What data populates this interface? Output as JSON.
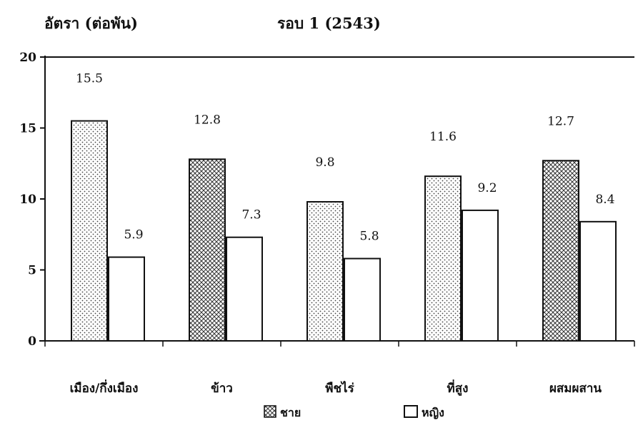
{
  "chart_data": {
    "type": "bar",
    "title": "รอบ 1 (2543)",
    "ylabel": "อัตรา (ต่อพัน)",
    "xlabel": "",
    "ylim": [
      0,
      20
    ],
    "yticks": [
      0,
      5,
      10,
      15,
      20
    ],
    "categories": [
      "เมือง/กึ่งเมือง",
      "ข้าว",
      "พืชไร่",
      "ที่สูง",
      "ผสมผสาน"
    ],
    "series": [
      {
        "name": "ชาย",
        "values": [
          15.5,
          12.8,
          9.8,
          11.6,
          12.7
        ],
        "value_labels": [
          "15.5",
          "12.8",
          "9.8",
          "11.6",
          "12.7"
        ]
      },
      {
        "name": "หญิง",
        "values": [
          5.9,
          7.3,
          5.8,
          9.2,
          8.4
        ],
        "value_labels": [
          "5.9",
          "7.3",
          "5.8",
          "9.2",
          "8.4"
        ]
      }
    ],
    "legend_position": "bottom-center",
    "grid": false
  }
}
